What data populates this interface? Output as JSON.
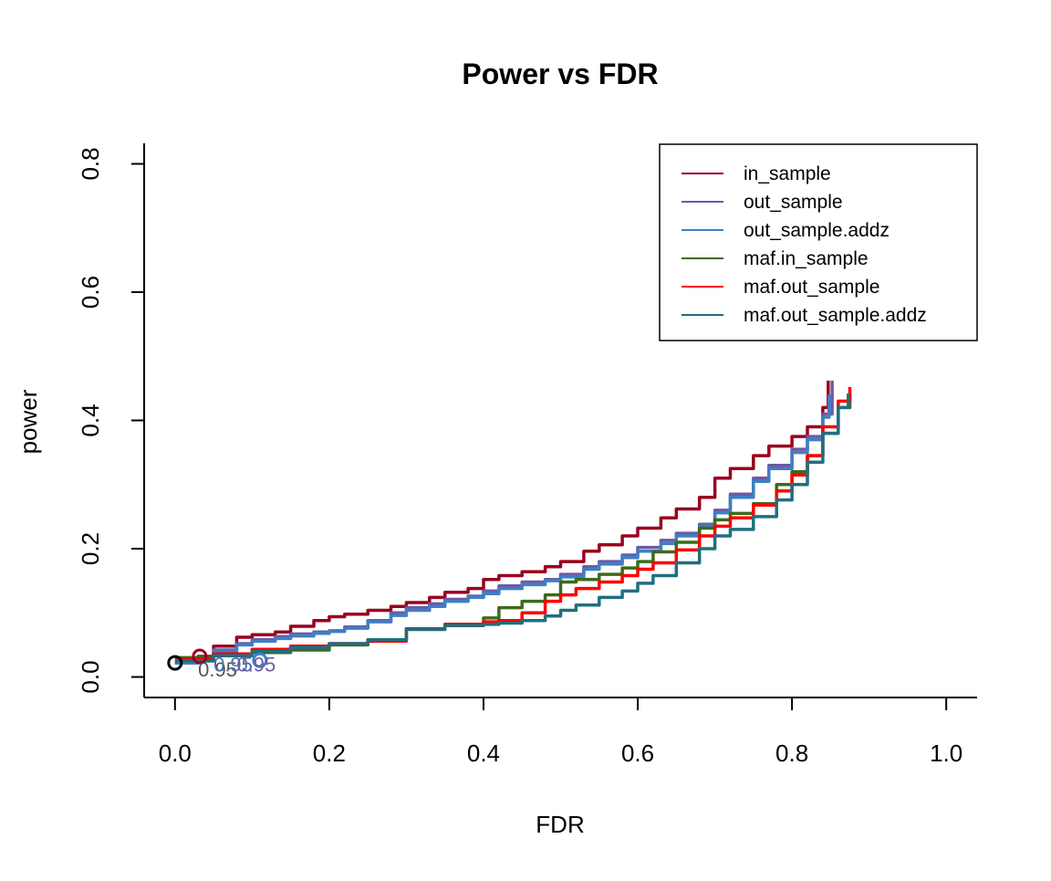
{
  "chart_data": {
    "type": "line",
    "title": "Power vs FDR",
    "xlabel": "FDR",
    "ylabel": "power",
    "xlim": [
      -0.04,
      1.04
    ],
    "ylim": [
      -0.032,
      0.832
    ],
    "x_ticks": [
      "0.0",
      "0.2",
      "0.4",
      "0.6",
      "0.8",
      "1.0"
    ],
    "x_tick_values": [
      0,
      0.2,
      0.4,
      0.6,
      0.8,
      1.0
    ],
    "y_ticks": [
      "0.0",
      "0.2",
      "0.4",
      "0.6",
      "0.8"
    ],
    "y_tick_values": [
      0,
      0.2,
      0.4,
      0.6,
      0.8
    ],
    "grid": false,
    "legend_position": "top-right",
    "series": [
      {
        "name": "in_sample",
        "color": "#99001f",
        "x": [
          0.0,
          0.03,
          0.05,
          0.08,
          0.1,
          0.13,
          0.15,
          0.18,
          0.2,
          0.22,
          0.25,
          0.28,
          0.3,
          0.33,
          0.35,
          0.38,
          0.4,
          0.42,
          0.45,
          0.48,
          0.5,
          0.53,
          0.55,
          0.58,
          0.6,
          0.63,
          0.65,
          0.68,
          0.7,
          0.72,
          0.75,
          0.77,
          0.8,
          0.82,
          0.84,
          0.847
        ],
        "y": [
          0.022,
          0.032,
          0.048,
          0.062,
          0.066,
          0.07,
          0.079,
          0.088,
          0.094,
          0.098,
          0.104,
          0.11,
          0.116,
          0.124,
          0.132,
          0.138,
          0.152,
          0.158,
          0.164,
          0.172,
          0.18,
          0.196,
          0.206,
          0.22,
          0.232,
          0.248,
          0.262,
          0.28,
          0.31,
          0.325,
          0.345,
          0.36,
          0.375,
          0.39,
          0.42,
          0.462
        ]
      },
      {
        "name": "out_sample",
        "color": "#6d5aa5",
        "x": [
          0.0,
          0.03,
          0.05,
          0.08,
          0.1,
          0.13,
          0.15,
          0.18,
          0.2,
          0.22,
          0.25,
          0.28,
          0.3,
          0.33,
          0.35,
          0.38,
          0.4,
          0.42,
          0.45,
          0.48,
          0.5,
          0.53,
          0.55,
          0.58,
          0.6,
          0.63,
          0.65,
          0.68,
          0.7,
          0.72,
          0.75,
          0.77,
          0.8,
          0.82,
          0.84,
          0.852
        ],
        "y": [
          0.022,
          0.03,
          0.042,
          0.052,
          0.058,
          0.063,
          0.067,
          0.07,
          0.072,
          0.078,
          0.088,
          0.1,
          0.108,
          0.114,
          0.121,
          0.126,
          0.134,
          0.142,
          0.148,
          0.152,
          0.16,
          0.172,
          0.18,
          0.19,
          0.202,
          0.213,
          0.224,
          0.238,
          0.26,
          0.285,
          0.31,
          0.33,
          0.355,
          0.375,
          0.41,
          0.462
        ]
      },
      {
        "name": "out_sample.addz",
        "color": "#3f7fc4",
        "x": [
          0.0,
          0.03,
          0.05,
          0.08,
          0.1,
          0.13,
          0.15,
          0.18,
          0.2,
          0.22,
          0.25,
          0.28,
          0.3,
          0.33,
          0.35,
          0.38,
          0.4,
          0.42,
          0.45,
          0.48,
          0.5,
          0.53,
          0.55,
          0.58,
          0.6,
          0.63,
          0.65,
          0.68,
          0.7,
          0.72,
          0.75,
          0.77,
          0.8,
          0.82,
          0.84,
          0.848
        ],
        "y": [
          0.022,
          0.03,
          0.04,
          0.05,
          0.056,
          0.06,
          0.064,
          0.068,
          0.071,
          0.076,
          0.086,
          0.096,
          0.104,
          0.11,
          0.118,
          0.124,
          0.13,
          0.138,
          0.144,
          0.15,
          0.156,
          0.168,
          0.176,
          0.186,
          0.196,
          0.208,
          0.22,
          0.235,
          0.256,
          0.28,
          0.305,
          0.325,
          0.35,
          0.37,
          0.405,
          0.44
        ]
      },
      {
        "name": "maf.in_sample",
        "color": "#3c6b1a",
        "x": [
          0.0,
          0.05,
          0.1,
          0.15,
          0.2,
          0.25,
          0.3,
          0.35,
          0.4,
          0.42,
          0.45,
          0.48,
          0.5,
          0.52,
          0.55,
          0.58,
          0.6,
          0.62,
          0.65,
          0.68,
          0.7,
          0.72,
          0.75,
          0.78,
          0.8,
          0.82,
          0.84,
          0.86,
          0.875
        ],
        "y": [
          0.03,
          0.035,
          0.038,
          0.042,
          0.05,
          0.058,
          0.075,
          0.082,
          0.092,
          0.108,
          0.118,
          0.128,
          0.148,
          0.152,
          0.16,
          0.17,
          0.18,
          0.195,
          0.21,
          0.232,
          0.245,
          0.255,
          0.27,
          0.3,
          0.32,
          0.345,
          0.38,
          0.42,
          0.442
        ]
      },
      {
        "name": "maf.out_sample",
        "color": "#ff0000",
        "x": [
          0.0,
          0.05,
          0.1,
          0.15,
          0.2,
          0.25,
          0.3,
          0.35,
          0.4,
          0.42,
          0.45,
          0.48,
          0.5,
          0.52,
          0.55,
          0.58,
          0.6,
          0.62,
          0.65,
          0.68,
          0.7,
          0.72,
          0.75,
          0.78,
          0.8,
          0.82,
          0.84,
          0.86,
          0.875
        ],
        "y": [
          0.028,
          0.036,
          0.043,
          0.048,
          0.052,
          0.056,
          0.075,
          0.082,
          0.086,
          0.088,
          0.1,
          0.118,
          0.128,
          0.138,
          0.148,
          0.158,
          0.168,
          0.178,
          0.198,
          0.22,
          0.235,
          0.248,
          0.268,
          0.29,
          0.315,
          0.345,
          0.39,
          0.43,
          0.452
        ]
      },
      {
        "name": "maf.out_sample.addz",
        "color": "#1f6f7f",
        "x": [
          0.0,
          0.05,
          0.1,
          0.15,
          0.2,
          0.25,
          0.3,
          0.35,
          0.4,
          0.42,
          0.45,
          0.48,
          0.5,
          0.52,
          0.55,
          0.58,
          0.6,
          0.62,
          0.65,
          0.68,
          0.7,
          0.72,
          0.75,
          0.78,
          0.8,
          0.82,
          0.84,
          0.86,
          0.873
        ],
        "y": [
          0.025,
          0.033,
          0.04,
          0.046,
          0.052,
          0.058,
          0.074,
          0.08,
          0.082,
          0.084,
          0.088,
          0.095,
          0.104,
          0.112,
          0.124,
          0.134,
          0.146,
          0.158,
          0.178,
          0.2,
          0.22,
          0.23,
          0.25,
          0.276,
          0.3,
          0.335,
          0.38,
          0.42,
          0.442
        ]
      }
    ],
    "point_markers": [
      {
        "x": 0.0,
        "y": 0.022,
        "color": "#000000"
      },
      {
        "x": 0.032,
        "y": 0.032,
        "color": "#99001f"
      },
      {
        "x": 0.11,
        "y": 0.026,
        "color": "#3f7fc4"
      }
    ],
    "annotations": [
      {
        "text": "0.95",
        "x": 0.03,
        "y": 0.018,
        "color": "#555555"
      },
      {
        "text": "0.95",
        "x": 0.05,
        "y": 0.026,
        "color": "#4a6faa"
      },
      {
        "text": "0.95",
        "x": 0.08,
        "y": 0.026,
        "color": "#6d5aa5"
      }
    ]
  }
}
